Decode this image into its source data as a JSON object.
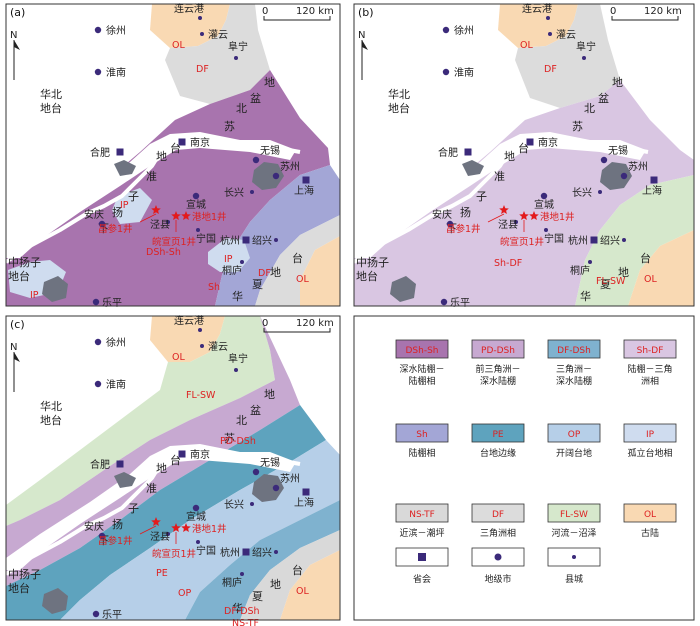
{
  "panels": [
    {
      "tag": "(a)"
    },
    {
      "tag": "(b)"
    },
    {
      "tag": "(c)"
    }
  ],
  "north": "N",
  "scale": {
    "zero": "0",
    "dist": "120 km"
  },
  "regions": {
    "huabei_1": "华北",
    "huabei_2": "地台",
    "zhongyangzi_1": "中扬子",
    "zhongyangzi_2": "地台",
    "xiayangzi": [
      "下",
      "扬",
      "子",
      "准",
      "地",
      "台"
    ],
    "subei": [
      "苏",
      "北",
      "盆",
      "地"
    ],
    "huaxia": [
      "华",
      "夏",
      "地",
      "台"
    ]
  },
  "cities": {
    "xuzhou": "徐州",
    "lianyungang": "连云港",
    "guanyun": "灌云",
    "funing": "阜宁",
    "huainan": "淮南",
    "hefei": "合肥",
    "nanjing": "南京",
    "wuxi": "无锡",
    "suzhou": "苏州",
    "shanghai": "上海",
    "changxing": "长兴",
    "xuancheng": "宣城",
    "anqing": "安庆",
    "jingxian": "泾县",
    "ningguo": "宁国",
    "hangzhou": "杭州",
    "shaoxing": "绍兴",
    "tonglu": "桐庐",
    "leping": "乐平"
  },
  "wells": {
    "changcan": "昌参1井",
    "gangdi": "港地1井",
    "wanxuanye": "皖宣页1井"
  },
  "facies_labels": {
    "a": [
      "OL",
      "DF",
      "IP",
      "DSh-Sh",
      "IP",
      "Sh",
      "IP",
      "DF",
      "OL"
    ],
    "b": [
      "OL",
      "DF",
      "Sh-DF",
      "FL-SW",
      "OL"
    ],
    "c": [
      "OL",
      "FL-SW",
      "PD-DSh",
      "PE",
      "OP",
      "DF-DSh",
      "NS-TF",
      "OL"
    ]
  },
  "legend": [
    {
      "code": "DSh-Sh",
      "color": "#a874ae",
      "name1": "深水陆棚－",
      "name2": "陆棚相"
    },
    {
      "code": "PD-DSh",
      "color": "#c7a9d1",
      "name1": "前三角洲－",
      "name2": "深水陆棚"
    },
    {
      "code": "DF-DSh",
      "color": "#7fb2cf",
      "name1": "三角洲－",
      "name2": "深水陆棚"
    },
    {
      "code": "Sh-DF",
      "color": "#d9c6e2",
      "name1": "陆棚－三角",
      "name2": "洲相"
    },
    {
      "code": "Sh",
      "color": "#a3a6d6",
      "name1": "陆棚相",
      "name2": ""
    },
    {
      "code": "PE",
      "color": "#5ea3be",
      "name1": "台地边缘",
      "name2": ""
    },
    {
      "code": "OP",
      "color": "#b6cfe8",
      "name1": "开阔台地",
      "name2": ""
    },
    {
      "code": "IP",
      "color": "#cfdcef",
      "name1": "孤立台地相",
      "name2": ""
    },
    {
      "code": "NS-TF",
      "color": "#d9d9d9",
      "name1": "近滨－潮坪",
      "name2": ""
    },
    {
      "code": "DF",
      "color": "#dcdcdc",
      "name1": "三角洲相",
      "name2": ""
    },
    {
      "code": "FL-SW",
      "color": "#d6e8cc",
      "name1": "河流－沼泽",
      "name2": ""
    },
    {
      "code": "OL",
      "color": "#f9d9b3",
      "name1": "古陆",
      "name2": ""
    },
    {
      "code": "",
      "color": "#ffffff",
      "name1": "省会",
      "name2": "",
      "symbol": "square"
    },
    {
      "code": "",
      "color": "#ffffff",
      "name1": "地级市",
      "name2": "",
      "symbol": "dot"
    },
    {
      "code": "",
      "color": "#ffffff",
      "name1": "县城",
      "name2": "",
      "symbol": "smalldot"
    }
  ],
  "colors": {
    "DSh-Sh": "#a874ae",
    "PD-DSh": "#c7a9d1",
    "DF-DSh": "#7fb2cf",
    "Sh-DF": "#d9c6e2",
    "Sh": "#a3a6d6",
    "PE": "#5ea3be",
    "OP": "#b6cfe8",
    "IP": "#cfdcef",
    "NS-TF": "#d9d9d9",
    "DF": "#dcdcdc",
    "FL-SW": "#d6e8cc",
    "OL": "#f9d9b3",
    "marker": "#3b2a7a",
    "well": "#e31a1c",
    "lake": "#6e7380"
  }
}
